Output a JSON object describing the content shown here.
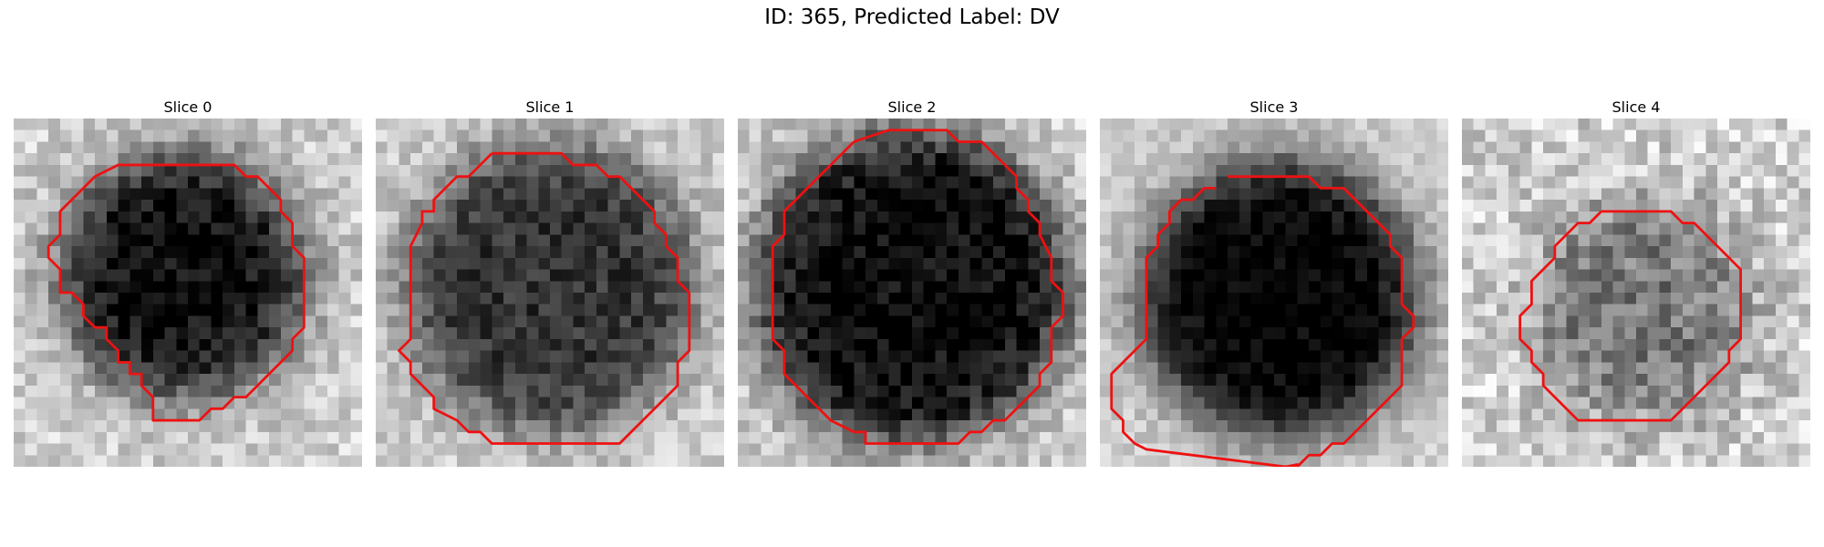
{
  "figure": {
    "title": "ID: 365, Predicted Label: DV",
    "contour_color": "#ee1111"
  },
  "slices": [
    {
      "label": "Slice 0",
      "seed": 11,
      "center": [
        14.5,
        13.5
      ],
      "radius": 10.5,
      "dark": 0.78,
      "noise": 0.28,
      "contour": [
        [
          11,
          4
        ],
        [
          19,
          4
        ],
        [
          20,
          5
        ],
        [
          21,
          5
        ],
        [
          22,
          6
        ],
        [
          23,
          7
        ],
        [
          23,
          8
        ],
        [
          24,
          9
        ],
        [
          24,
          11
        ],
        [
          25,
          12
        ],
        [
          25,
          18
        ],
        [
          24,
          19
        ],
        [
          24,
          20
        ],
        [
          23,
          21
        ],
        [
          22,
          22
        ],
        [
          21,
          23
        ],
        [
          20,
          24
        ],
        [
          19,
          24
        ],
        [
          18,
          25
        ],
        [
          17,
          25
        ],
        [
          16,
          26
        ],
        [
          12,
          26
        ],
        [
          12,
          24
        ],
        [
          11,
          23
        ],
        [
          11,
          22
        ],
        [
          10,
          22
        ],
        [
          10,
          21
        ],
        [
          9,
          21
        ],
        [
          9,
          20
        ],
        [
          8,
          19
        ],
        [
          8,
          18
        ],
        [
          7,
          18
        ],
        [
          6,
          17
        ],
        [
          6,
          16
        ],
        [
          5,
          15
        ],
        [
          4,
          15
        ],
        [
          4,
          14
        ],
        [
          4,
          13
        ],
        [
          3,
          12
        ],
        [
          3,
          11
        ],
        [
          4,
          10
        ],
        [
          4,
          8
        ],
        [
          5,
          7
        ],
        [
          6,
          6
        ],
        [
          7,
          5
        ],
        [
          9,
          4
        ]
      ]
    },
    {
      "label": "Slice 1",
      "seed": 23,
      "center": [
        15.0,
        14.5
      ],
      "radius": 12.5,
      "dark": 0.62,
      "noise": 0.26,
      "contour": [
        [
          10,
          3
        ],
        [
          16,
          3
        ],
        [
          17,
          4
        ],
        [
          19,
          4
        ],
        [
          20,
          5
        ],
        [
          21,
          5
        ],
        [
          22,
          6
        ],
        [
          23,
          7
        ],
        [
          24,
          8
        ],
        [
          24,
          9
        ],
        [
          25,
          10
        ],
        [
          25,
          11
        ],
        [
          26,
          12
        ],
        [
          26,
          14
        ],
        [
          27,
          15
        ],
        [
          27,
          20
        ],
        [
          26,
          21
        ],
        [
          26,
          23
        ],
        [
          25,
          24
        ],
        [
          24,
          25
        ],
        [
          23,
          26
        ],
        [
          22,
          27
        ],
        [
          21,
          28
        ],
        [
          10,
          28
        ],
        [
          9,
          27
        ],
        [
          8,
          27
        ],
        [
          7,
          26
        ],
        [
          5,
          25
        ],
        [
          5,
          24
        ],
        [
          4,
          23
        ],
        [
          3,
          22
        ],
        [
          3,
          21
        ],
        [
          2,
          20
        ],
        [
          3,
          19
        ],
        [
          3,
          12
        ],
        [
          3,
          11
        ],
        [
          4,
          9
        ],
        [
          4,
          8
        ],
        [
          5,
          8
        ],
        [
          5,
          7
        ],
        [
          6,
          6
        ],
        [
          7,
          5
        ],
        [
          8,
          5
        ],
        [
          9,
          4
        ]
      ]
    },
    {
      "label": "Slice 2",
      "seed": 37,
      "center": [
        15.0,
        14.5
      ],
      "radius": 13.5,
      "dark": 0.8,
      "noise": 0.3,
      "contour": [
        [
          10,
          2
        ],
        [
          13,
          1
        ],
        [
          18,
          1
        ],
        [
          19,
          2
        ],
        [
          21,
          2
        ],
        [
          22,
          3
        ],
        [
          23,
          4
        ],
        [
          24,
          5
        ],
        [
          24,
          6
        ],
        [
          25,
          7
        ],
        [
          25,
          8
        ],
        [
          26,
          9
        ],
        [
          26,
          10
        ],
        [
          27,
          12
        ],
        [
          27,
          14
        ],
        [
          28,
          15
        ],
        [
          28,
          17
        ],
        [
          27,
          18
        ],
        [
          27,
          19
        ],
        [
          27,
          21
        ],
        [
          26,
          22
        ],
        [
          26,
          23
        ],
        [
          25,
          24
        ],
        [
          24,
          25
        ],
        [
          23,
          26
        ],
        [
          22,
          26
        ],
        [
          21,
          27
        ],
        [
          20,
          27
        ],
        [
          19,
          28
        ],
        [
          11,
          28
        ],
        [
          11,
          27
        ],
        [
          10,
          27
        ],
        [
          8,
          26
        ],
        [
          7,
          25
        ],
        [
          6,
          24
        ],
        [
          5,
          23
        ],
        [
          4,
          22
        ],
        [
          4,
          20
        ],
        [
          3,
          19
        ],
        [
          3,
          18
        ],
        [
          3,
          11
        ],
        [
          4,
          10
        ],
        [
          4,
          8
        ],
        [
          5,
          7
        ],
        [
          6,
          6
        ],
        [
          7,
          5
        ],
        [
          8,
          4
        ],
        [
          9,
          3
        ]
      ]
    },
    {
      "label": "Slice 3",
      "seed": 53,
      "center": [
        15.5,
        15.5
      ],
      "radius": 12.0,
      "dark": 0.82,
      "noise": 0.2,
      "contour": [
        [
          11,
          5
        ],
        [
          18,
          5
        ],
        [
          19,
          6
        ],
        [
          21,
          6
        ],
        [
          22,
          7
        ],
        [
          23,
          8
        ],
        [
          24,
          9
        ],
        [
          25,
          10
        ],
        [
          25,
          11
        ],
        [
          26,
          12
        ],
        [
          26,
          16
        ],
        [
          27,
          17
        ],
        [
          27,
          18
        ],
        [
          26,
          19
        ],
        [
          26,
          23
        ],
        [
          25,
          24
        ],
        [
          24,
          25
        ],
        [
          23,
          26
        ],
        [
          22,
          27
        ],
        [
          21,
          28
        ],
        [
          20,
          28
        ],
        [
          19,
          29
        ],
        [
          18,
          29
        ],
        [
          17,
          30
        ],
        [
          16,
          30
        ],
        [
          17,
          29.8
        ],
        [
          16,
          30
        ],
        [
          4,
          28.5
        ],
        [
          3,
          28
        ],
        [
          2,
          27
        ],
        [
          2,
          26
        ],
        [
          1,
          25
        ],
        [
          1,
          22
        ],
        [
          2,
          21
        ],
        [
          3,
          20
        ],
        [
          4,
          19
        ],
        [
          4,
          12
        ],
        [
          5,
          11
        ],
        [
          5,
          10
        ],
        [
          6,
          9
        ],
        [
          6,
          8
        ],
        [
          7,
          7
        ],
        [
          8,
          7
        ],
        [
          9,
          6
        ],
        [
          10,
          6
        ]
      ]
    },
    {
      "label": "Slice 4",
      "seed": 71,
      "center": [
        15.5,
        16.5
      ],
      "radius": 9.5,
      "dark": 0.35,
      "noise": 0.36,
      "contour": [
        [
          12,
          8
        ],
        [
          18,
          8
        ],
        [
          19,
          9
        ],
        [
          20,
          9
        ],
        [
          21,
          10
        ],
        [
          22,
          11
        ],
        [
          23,
          12
        ],
        [
          24,
          13
        ],
        [
          24,
          19
        ],
        [
          23,
          20
        ],
        [
          23,
          21
        ],
        [
          22,
          22
        ],
        [
          21,
          23
        ],
        [
          20,
          24
        ],
        [
          19,
          25
        ],
        [
          18,
          26
        ],
        [
          10,
          26
        ],
        [
          9,
          25
        ],
        [
          8,
          24
        ],
        [
          7,
          23
        ],
        [
          7,
          22
        ],
        [
          6,
          21
        ],
        [
          6,
          20
        ],
        [
          5,
          19
        ],
        [
          5,
          17
        ],
        [
          6,
          16
        ],
        [
          6,
          14
        ],
        [
          7,
          13
        ],
        [
          8,
          12
        ],
        [
          8,
          11
        ],
        [
          9,
          10
        ],
        [
          10,
          9
        ],
        [
          11,
          9
        ]
      ]
    }
  ]
}
